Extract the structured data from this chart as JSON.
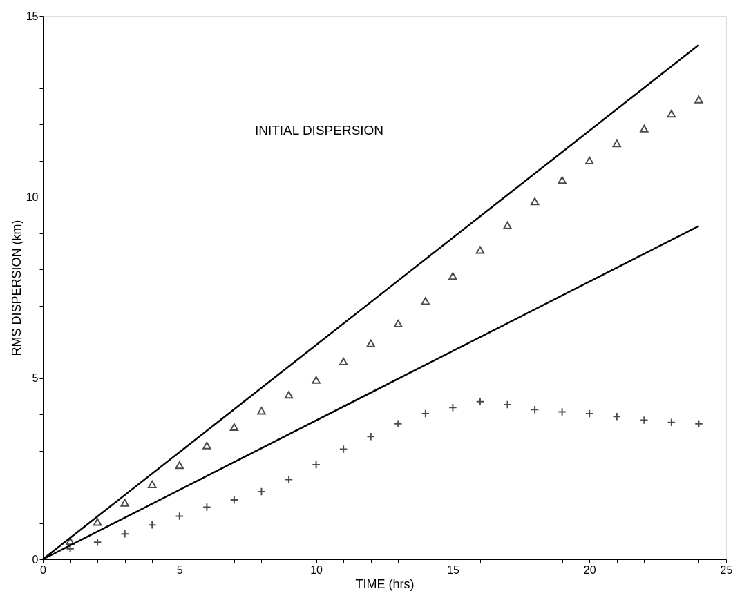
{
  "chart_data": {
    "type": "scatter",
    "xlabel": "TIME (hrs)",
    "ylabel": "RMS DISPERSION (km)",
    "annotations": [
      "INITIAL DISPERSION"
    ],
    "xlim": [
      0,
      25
    ],
    "ylim": [
      0,
      15
    ],
    "xticks": [
      0,
      {
        "value": 1,
        "label": null
      },
      {
        "value": 2,
        "label": null
      },
      {
        "value": 3,
        "label": null
      },
      {
        "value": 4,
        "label": null
      },
      5,
      {
        "value": 6,
        "label": null
      },
      {
        "value": 7,
        "label": null
      },
      {
        "value": 8,
        "label": null
      },
      {
        "value": 9,
        "label": null
      },
      10,
      {
        "value": 11,
        "label": null
      },
      {
        "value": 12,
        "label": null
      },
      {
        "value": 13,
        "label": null
      },
      {
        "value": 14,
        "label": null
      },
      15,
      {
        "value": 16,
        "label": null
      },
      {
        "value": 17,
        "label": null
      },
      {
        "value": 18,
        "label": null
      },
      {
        "value": 19,
        "label": null
      },
      20,
      {
        "value": 21,
        "label": null
      },
      {
        "value": 22,
        "label": null
      },
      {
        "value": 23,
        "label": null
      },
      {
        "value": 24,
        "label": null
      },
      25
    ],
    "yticks": [
      0,
      {
        "value": 1,
        "label": null
      },
      {
        "value": 2,
        "label": null
      },
      {
        "value": 3,
        "label": null
      },
      {
        "value": 4,
        "label": null
      },
      5,
      {
        "value": 6,
        "label": null
      },
      {
        "value": 7,
        "label": null
      },
      {
        "value": 8,
        "label": null
      },
      {
        "value": 9,
        "label": null
      },
      10,
      {
        "value": 11,
        "label": null
      },
      {
        "value": 12,
        "label": null
      },
      {
        "value": 13,
        "label": null
      },
      {
        "value": 14,
        "label": null
      },
      15
    ],
    "grid": false,
    "series": [
      {
        "type": "line",
        "color": "#000000",
        "x": [
          0,
          24
        ],
        "values": [
          0,
          14.2
        ],
        "marker": "none",
        "line_style": "solid"
      },
      {
        "type": "line",
        "color": "#000000",
        "x": [
          0,
          24
        ],
        "values": [
          0,
          9.2
        ],
        "marker": "none",
        "line_style": "solid"
      },
      {
        "color": "#000000",
        "marker": "triangle",
        "x": [
          1,
          2,
          3,
          4,
          5,
          6,
          7,
          8,
          9,
          10,
          11,
          12,
          13,
          14,
          15,
          16,
          17,
          18,
          19,
          20,
          21,
          22,
          23,
          24
        ],
        "values": [
          0.5,
          1.03,
          1.56,
          2.07,
          2.6,
          3.14,
          3.65,
          4.1,
          4.54,
          4.95,
          5.46,
          5.96,
          6.51,
          7.13,
          7.82,
          8.54,
          9.22,
          9.88,
          10.47,
          11.01,
          11.48,
          11.89,
          12.3,
          12.69
        ]
      },
      {
        "color": "#000000",
        "marker": "cross",
        "x": [
          1,
          2,
          3,
          4,
          5,
          6,
          7,
          8,
          9,
          10,
          11,
          12,
          13,
          14,
          15,
          16,
          17,
          18,
          19,
          20,
          21,
          22,
          23,
          24
        ],
        "values": [
          0.29,
          0.47,
          0.7,
          0.95,
          1.19,
          1.44,
          1.64,
          1.87,
          2.2,
          2.61,
          3.04,
          3.39,
          3.74,
          4.02,
          4.19,
          4.35,
          4.27,
          4.13,
          4.07,
          4.02,
          3.94,
          3.84,
          3.78,
          3.74
        ]
      }
    ]
  }
}
